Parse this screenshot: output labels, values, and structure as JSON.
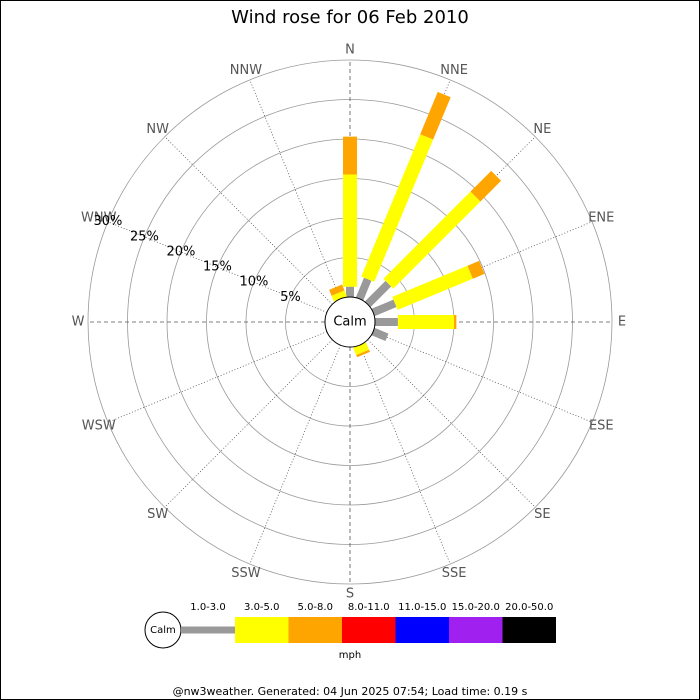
{
  "chart_data": {
    "type": "windrose",
    "title": "Wind rose for 06 Feb 2010",
    "directions": [
      "N",
      "NNE",
      "NE",
      "ENE",
      "E",
      "ESE",
      "SE",
      "SSE",
      "S",
      "SSW",
      "SW",
      "WSW",
      "W",
      "WNW",
      "NW",
      "NNW"
    ],
    "calm_label": "Calm",
    "unit_label": "mph",
    "rlim": [
      0,
      30
    ],
    "rticks": [
      {
        "value": 5,
        "label": "5%"
      },
      {
        "value": 10,
        "label": "10%"
      },
      {
        "value": 15,
        "label": "15%"
      },
      {
        "value": 20,
        "label": "20%"
      },
      {
        "value": 25,
        "label": "25%"
      },
      {
        "value": 30,
        "label": "30%"
      }
    ],
    "series": [
      {
        "name": "1.0-3.0",
        "color": "#999999",
        "values": [
          1.3,
          2.7,
          3.7,
          3.0,
          2.9,
          1.9,
          0,
          0,
          0,
          0,
          0,
          0,
          0,
          0,
          0,
          0
        ]
      },
      {
        "name": "3.0-5.0",
        "color": "#ffff00",
        "values": [
          14.2,
          19.5,
          15.6,
          10.3,
          7.1,
          0,
          0,
          1.0,
          0,
          0,
          0,
          0,
          0,
          0,
          0,
          0.8
        ]
      },
      {
        "name": "5.0-8.0",
        "color": "#ffa500",
        "values": [
          4.8,
          5.8,
          3.7,
          1.6,
          0.3,
          0,
          0,
          0.3,
          0,
          0,
          0,
          0,
          0,
          0,
          0,
          0.8
        ]
      },
      {
        "name": "8.0-11.0",
        "color": "#ff0000",
        "values": [
          0,
          0,
          0,
          0,
          0,
          0,
          0,
          0,
          0,
          0,
          0,
          0,
          0,
          0,
          0,
          0
        ]
      },
      {
        "name": "11.0-15.0",
        "color": "#0000ff",
        "values": [
          0,
          0,
          0,
          0,
          0,
          0,
          0,
          0,
          0,
          0,
          0,
          0,
          0,
          0,
          0,
          0
        ]
      },
      {
        "name": "15.0-20.0",
        "color": "#a020f0",
        "values": [
          0,
          0,
          0,
          0,
          0,
          0,
          0,
          0,
          0,
          0,
          0,
          0,
          0,
          0,
          0,
          0
        ]
      },
      {
        "name": "20.0-50.0",
        "color": "#000000",
        "values": [
          0,
          0,
          0,
          0,
          0,
          0,
          0,
          0,
          0,
          0,
          0,
          0,
          0,
          0,
          0,
          0
        ]
      }
    ],
    "footer": "@nw3weather. Generated: 04 Jun 2025 07:54; Load time: 0.19 s"
  }
}
